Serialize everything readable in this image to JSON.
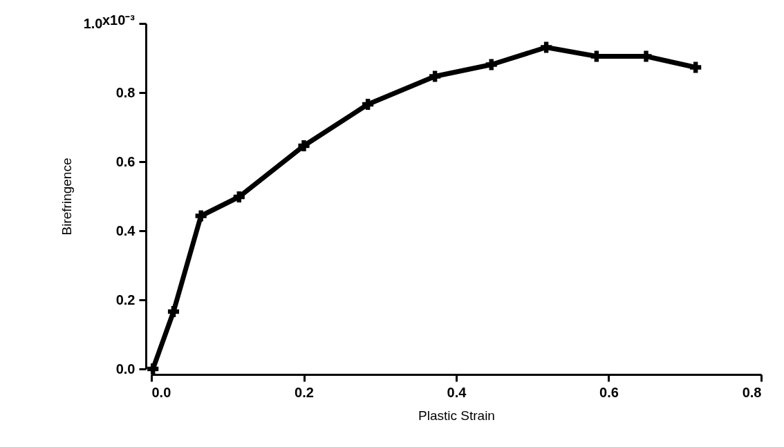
{
  "chart_data": {
    "type": "line",
    "xlabel": "Plastic Strain",
    "ylabel": "Birefringence",
    "x": [
      0.002,
      0.029,
      0.065,
      0.115,
      0.2,
      0.284,
      0.372,
      0.446,
      0.518,
      0.584,
      0.649,
      0.714
    ],
    "series": [
      {
        "color": "#000000",
        "values": [
          0.0,
          0.166,
          0.443,
          0.498,
          0.646,
          0.766,
          0.847,
          0.881,
          0.931,
          0.905,
          0.905,
          0.873
        ]
      }
    ],
    "xlim": [
      0,
      0.8
    ],
    "xticks": [
      "0.0",
      0.2,
      0.4,
      0.6,
      0.8
    ],
    "ylim": [
      0,
      1.0
    ],
    "yticks": [
      "0.0",
      0.2,
      0.4,
      0.6,
      0.8,
      "1.0"
    ],
    "annotations": [
      "x10⁻³"
    ],
    "grid": false,
    "marker": "cross",
    "line_style": "solid"
  }
}
